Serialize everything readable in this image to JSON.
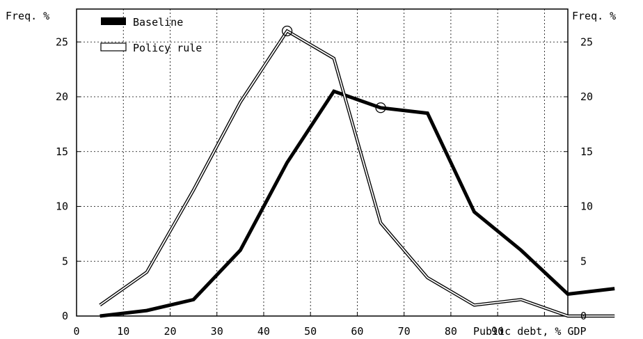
{
  "chart_data": {
    "type": "line",
    "ylabel_left": "Freq. %",
    "ylabel_right": "Freq. %",
    "xlabel": "Public debt, % GDP",
    "xlim": [
      0,
      105
    ],
    "ylim": [
      0,
      28
    ],
    "x_ticks": [
      0,
      10,
      20,
      30,
      40,
      50,
      60,
      70,
      80,
      90
    ],
    "y_ticks": [
      0,
      5,
      10,
      15,
      20,
      25
    ],
    "grid": true,
    "legend_position": "top-left",
    "series": [
      {
        "name": "Baseline",
        "style": "thick-black",
        "color": "#000000",
        "x": [
          5,
          15,
          25,
          35,
          45,
          55,
          65,
          75,
          85,
          95,
          105,
          115
        ],
        "y": [
          0.0,
          0.5,
          1.5,
          6.0,
          14.0,
          20.5,
          19.0,
          18.5,
          9.5,
          6.0,
          2.0,
          2.5
        ],
        "markers": [
          {
            "x": 65,
            "y": 19.0
          }
        ]
      },
      {
        "name": "Policy rule",
        "style": "double-outline",
        "color": "#000000",
        "x": [
          5,
          15,
          25,
          35,
          45,
          55,
          65,
          75,
          85,
          95,
          105,
          115
        ],
        "y": [
          1.0,
          4.0,
          11.5,
          19.5,
          26.0,
          23.5,
          8.5,
          3.5,
          1.0,
          1.5,
          0.0,
          0.0
        ],
        "markers": [
          {
            "x": 45,
            "y": 26.0
          }
        ]
      }
    ]
  }
}
